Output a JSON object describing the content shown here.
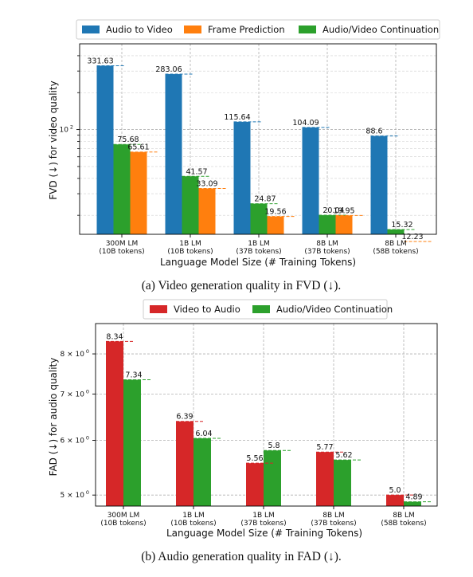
{
  "chart_data": [
    {
      "type": "bar",
      "scale": "log",
      "caption": "(a) Video generation quality in FVD (↓).",
      "ylabel": "FVD (↓) for video quality",
      "xlabel": "Language Model Size (# Training Tokens)",
      "categories": [
        [
          "300M LM",
          "(10B tokens)"
        ],
        [
          "1B LM",
          "(10B tokens)"
        ],
        [
          "1B LM",
          "(37B tokens)"
        ],
        [
          "8B LM",
          "(37B tokens)"
        ],
        [
          "8B LM",
          "(58B tokens)"
        ]
      ],
      "yticks": [
        {
          "label": "10",
          "sup": "2",
          "value": 100
        }
      ],
      "ylim": [
        14,
        500
      ],
      "legend_position": "top",
      "grid": true,
      "series": [
        {
          "name": "Audio to Video",
          "color": "#1f77b4",
          "values": [
            331.63,
            283.06,
            115.64,
            104.09,
            88.6
          ],
          "labels": [
            "331.63",
            "283.06",
            "115.64",
            "104.09",
            "88.6"
          ]
        },
        {
          "name": "Frame Prediction",
          "color": "#ff7f0e",
          "values": [
            65.61,
            33.09,
            19.56,
            19.95,
            12.23
          ],
          "labels": [
            "65.61",
            "33.09",
            "19.56",
            "19.95",
            "12.23"
          ]
        },
        {
          "name": "Audio/Video Continuation",
          "color": "#2ca02c",
          "values": [
            75.68,
            41.57,
            24.87,
            20.04,
            15.32
          ],
          "labels": [
            "75.68",
            "41.57",
            "24.87",
            "20.04",
            "15.32"
          ]
        }
      ],
      "draw_order": [
        0,
        2,
        1
      ]
    },
    {
      "type": "bar",
      "scale": "log",
      "caption": "(b) Audio generation quality in FAD (↓).",
      "ylabel": "FAD (↓) for audio quality",
      "xlabel": "Language Model Size (# Training Tokens)",
      "categories": [
        [
          "300M LM",
          "(10B tokens)"
        ],
        [
          "1B LM",
          "(10B tokens)"
        ],
        [
          "1B LM",
          "(37B tokens)"
        ],
        [
          "8B LM",
          "(37B tokens)"
        ],
        [
          "8B LM",
          "(58B tokens)"
        ]
      ],
      "yticks": [
        {
          "label": "5 × 10",
          "sup": "0",
          "value": 5
        },
        {
          "label": "6 × 10",
          "sup": "0",
          "value": 6
        },
        {
          "label": "7 × 10",
          "sup": "0",
          "value": 7
        },
        {
          "label": "8 × 10",
          "sup": "0",
          "value": 8
        }
      ],
      "ylim": [
        4.82,
        8.85
      ],
      "legend_position": "top",
      "grid": true,
      "series": [
        {
          "name": "Video to Audio",
          "color": "#d62728",
          "values": [
            8.34,
            6.39,
            5.56,
            5.77,
            5.0
          ],
          "labels": [
            "8.34",
            "6.39",
            "5.56",
            "5.77",
            "5.0"
          ]
        },
        {
          "name": "Audio/Video Continuation",
          "color": "#2ca02c",
          "values": [
            7.34,
            6.04,
            5.8,
            5.62,
            4.89
          ],
          "labels": [
            "7.34",
            "6.04",
            "5.8",
            "5.62",
            "4.89"
          ]
        }
      ],
      "draw_order": [
        0,
        1
      ]
    }
  ]
}
